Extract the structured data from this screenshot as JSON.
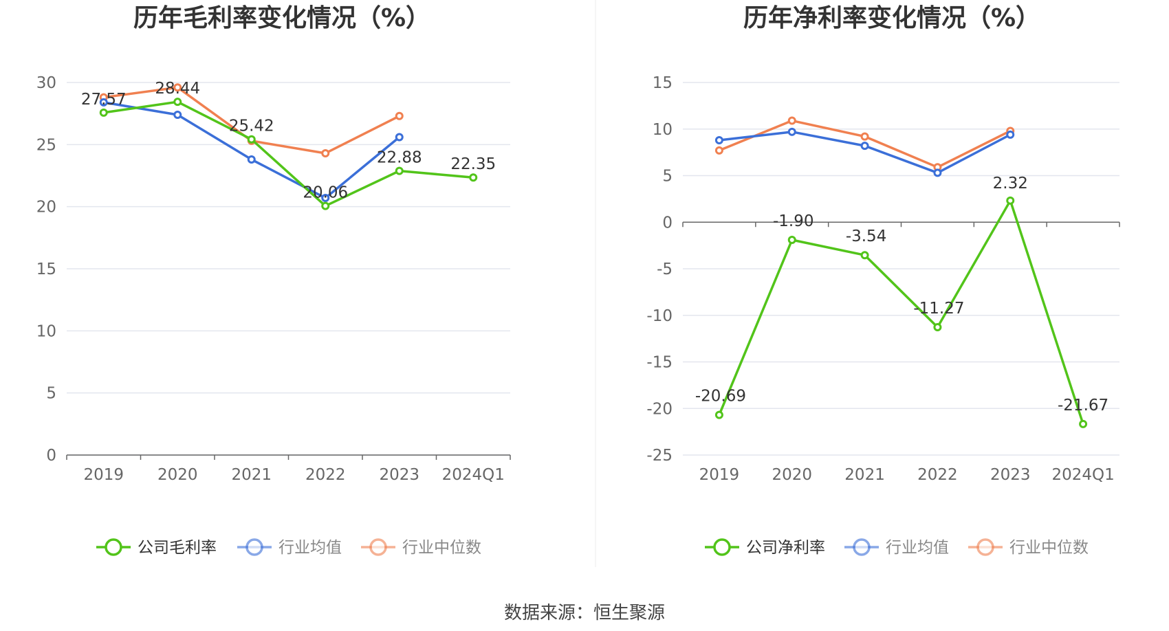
{
  "source": "数据来源：恒生聚源",
  "chart_data": [
    {
      "type": "line",
      "title": "历年毛利率变化情况（%）",
      "categories": [
        "2019",
        "2020",
        "2021",
        "2022",
        "2023",
        "2024Q1"
      ],
      "yticks": [
        "0",
        "5",
        "10",
        "15",
        "20",
        "25",
        "30"
      ],
      "ylim": [
        0,
        30
      ],
      "grid": true,
      "legend_position": "bottom",
      "series": [
        {
          "name": "公司毛利率",
          "color": "#52c41a",
          "values": [
            27.57,
            28.44,
            25.42,
            20.06,
            22.88,
            22.35
          ],
          "labels": [
            "27.57",
            "28.44",
            "25.42",
            "20.06",
            "22.88",
            "22.35"
          ]
        },
        {
          "name": "行业均值",
          "color": "#3b6fd8",
          "values": [
            28.4,
            27.4,
            23.8,
            20.7,
            25.6,
            null
          ]
        },
        {
          "name": "行业中位数",
          "color": "#f08050",
          "values": [
            28.8,
            29.6,
            25.3,
            24.3,
            27.3,
            null
          ]
        }
      ]
    },
    {
      "type": "line",
      "title": "历年净利率变化情况（%）",
      "categories": [
        "2019",
        "2020",
        "2021",
        "2022",
        "2023",
        "2024Q1"
      ],
      "yticks": [
        "-25",
        "-20",
        "-15",
        "-10",
        "-5",
        "0",
        "5",
        "10",
        "15"
      ],
      "ylim": [
        -25,
        15
      ],
      "grid": true,
      "legend_position": "bottom",
      "series": [
        {
          "name": "公司净利率",
          "color": "#52c41a",
          "values": [
            -20.69,
            -1.9,
            -3.54,
            -11.27,
            2.32,
            -21.67
          ],
          "labels": [
            "-20.69",
            "-1.90",
            "-3.54",
            "-11.27",
            "2.32",
            "-21.67"
          ]
        },
        {
          "name": "行业均值",
          "color": "#3b6fd8",
          "values": [
            8.8,
            9.7,
            8.2,
            5.3,
            9.4,
            null
          ]
        },
        {
          "name": "行业中位数",
          "color": "#f08050",
          "values": [
            7.7,
            10.9,
            9.2,
            5.9,
            9.8,
            null
          ]
        }
      ]
    }
  ]
}
